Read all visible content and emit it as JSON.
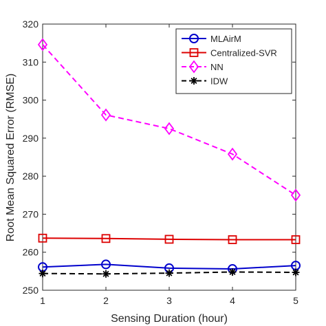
{
  "chart_data": {
    "type": "line",
    "xlabel": "Sensing Duration (hour)",
    "ylabel": "Root Mean Squared Error (RMSE)",
    "xlim": [
      1,
      5
    ],
    "ylim": [
      250,
      320
    ],
    "xticks": [
      1,
      2,
      3,
      4,
      5
    ],
    "yticks": [
      250,
      260,
      270,
      280,
      290,
      300,
      310,
      320
    ],
    "grid": false,
    "legend_position": "top-right",
    "x": [
      1,
      2,
      3,
      4,
      5
    ],
    "series": [
      {
        "name": "MLAirM",
        "values": [
          256.1,
          256.8,
          255.8,
          255.6,
          256.5
        ],
        "color": "#0000cc",
        "marker": "circle",
        "dash": "solid"
      },
      {
        "name": "Centralized-SVR",
        "values": [
          263.7,
          263.6,
          263.4,
          263.3,
          263.3
        ],
        "color": "#dd0000",
        "marker": "square",
        "dash": "solid"
      },
      {
        "name": "NN",
        "values": [
          314.6,
          296.1,
          292.5,
          285.8,
          275.0
        ],
        "color": "#ff00ff",
        "marker": "diamond",
        "dash": "dashed"
      },
      {
        "name": "IDW",
        "values": [
          254.4,
          254.3,
          254.5,
          254.8,
          254.7
        ],
        "color": "#000000",
        "marker": "asterisk",
        "dash": "dashed"
      }
    ]
  }
}
